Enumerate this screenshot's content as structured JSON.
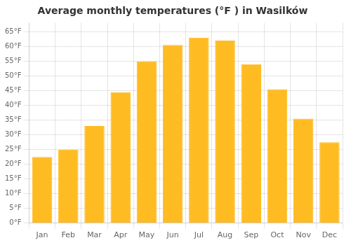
{
  "chart_data": {
    "type": "bar",
    "title": "Average monthly temperatures (°F ) in Wasilków",
    "categories": [
      "Jan",
      "Feb",
      "Mar",
      "Apr",
      "May",
      "Jun",
      "Jul",
      "Aug",
      "Sep",
      "Oct",
      "Nov",
      "Dec"
    ],
    "values": [
      22.5,
      25.0,
      33.0,
      44.5,
      55.0,
      60.5,
      63.0,
      62.0,
      54.0,
      45.5,
      35.5,
      27.5
    ],
    "color": "#FFBB22",
    "ylim": [
      0,
      68
    ],
    "yticks": [
      {
        "value": 0,
        "label": "0°F"
      },
      {
        "value": 5,
        "label": "5°F"
      },
      {
        "value": 10,
        "label": "10°F"
      },
      {
        "value": 15,
        "label": "15°F"
      },
      {
        "value": 20,
        "label": "20°F"
      },
      {
        "value": 25,
        "label": "25°F"
      },
      {
        "value": 30,
        "label": "30°F"
      },
      {
        "value": 35,
        "label": "35°F"
      },
      {
        "value": 40,
        "label": "40°F"
      },
      {
        "value": 45,
        "label": "45°F"
      },
      {
        "value": 50,
        "label": "50°F"
      },
      {
        "value": 55,
        "label": "55°F"
      },
      {
        "value": 60,
        "label": "60°F"
      },
      {
        "value": 65,
        "label": "65°F"
      }
    ],
    "grid": true
  }
}
